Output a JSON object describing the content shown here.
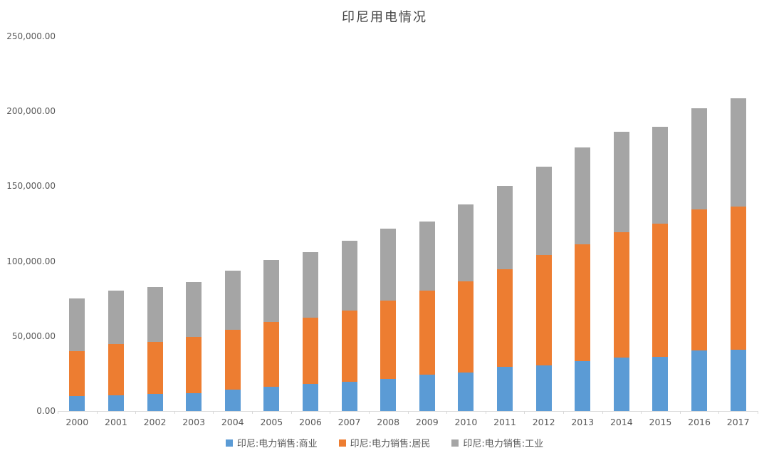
{
  "title": "印尼用电情况",
  "chart_data": {
    "type": "bar",
    "stacked": true,
    "title": "印尼用电情况",
    "xlabel": "",
    "ylabel": "",
    "grid": false,
    "legend_position": "bottom",
    "ylim": [
      0,
      250000
    ],
    "yticks": [
      {
        "label": "0.00",
        "value": 0
      },
      {
        "label": "50,000.00",
        "value": 50000
      },
      {
        "label": "100,000.00",
        "value": 100000
      },
      {
        "label": "150,000.00",
        "value": 150000
      },
      {
        "label": "200,000.00",
        "value": 200000
      },
      {
        "label": "250,000.00",
        "value": 250000
      }
    ],
    "categories": [
      "2000",
      "2001",
      "2002",
      "2003",
      "2004",
      "2005",
      "2006",
      "2007",
      "2008",
      "2009",
      "2010",
      "2011",
      "2012",
      "2013",
      "2014",
      "2015",
      "2016",
      "2017"
    ],
    "series": [
      {
        "name": "印尼:电力销售:商业",
        "color": "#5B9BD5",
        "values": [
          10000,
          10300,
          11300,
          12100,
          14100,
          16100,
          18000,
          19500,
          21600,
          24300,
          25900,
          29500,
          30600,
          33500,
          35600,
          36200,
          40600,
          41000
        ]
      },
      {
        "name": "印尼:电力销售:居民",
        "color": "#ED7D31",
        "values": [
          30100,
          34300,
          34600,
          37300,
          40000,
          43100,
          44100,
          47300,
          51900,
          56000,
          60800,
          65100,
          73300,
          77800,
          83600,
          88600,
          93700,
          95200
        ]
      },
      {
        "name": "印尼:电力销售:工业",
        "color": "#A5A5A5",
        "values": [
          35100,
          35500,
          36700,
          36500,
          39700,
          41400,
          43700,
          46900,
          48100,
          46000,
          51300,
          55500,
          59200,
          64800,
          67000,
          64800,
          67500,
          72400
        ]
      }
    ]
  }
}
